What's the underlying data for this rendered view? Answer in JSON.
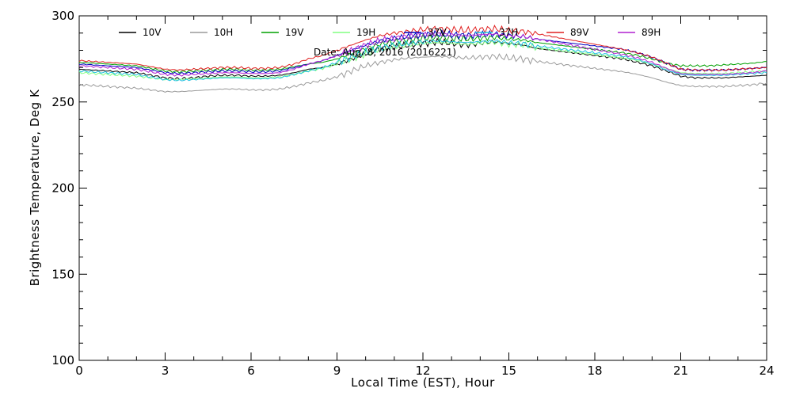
{
  "chart_data": {
    "type": "line",
    "title": "",
    "subtitle": "Date: Aug. 8, 2016 (2016221)",
    "xlabel": "Local Time (EST), Hour",
    "ylabel": "Brightness Temperature, Deg K",
    "xlim": [
      0,
      24
    ],
    "ylim": [
      100,
      300
    ],
    "x_ticks": [
      "0",
      "3",
      "6",
      "9",
      "12",
      "15",
      "18",
      "21",
      "24"
    ],
    "y_ticks": [
      "100",
      "150",
      "200",
      "250",
      "300"
    ],
    "grid": false,
    "legend_position": "top",
    "x": [
      0,
      0.5,
      1,
      1.5,
      2,
      2.5,
      3,
      3.5,
      4,
      4.5,
      5,
      5.5,
      6,
      6.5,
      7,
      7.5,
      8,
      8.5,
      9,
      9.5,
      10,
      10.5,
      11,
      11.5,
      12,
      12.5,
      13,
      13.5,
      14,
      14.5,
      15,
      15.5,
      16,
      16.5,
      17,
      17.5,
      18,
      18.5,
      19,
      19.5,
      20,
      20.5,
      21,
      21.5,
      22,
      22.5,
      23,
      23.5,
      24
    ],
    "series": [
      {
        "name": "10V",
        "color": "#000000",
        "values": [
          269,
          268.5,
          268,
          267.5,
          267,
          265.5,
          264,
          263.5,
          264,
          265,
          265.5,
          265.5,
          265,
          265,
          265.5,
          267,
          269,
          270,
          272,
          275,
          278,
          281,
          282,
          283,
          284,
          285,
          284,
          283,
          284,
          285,
          284,
          283,
          281,
          280,
          279,
          278,
          277,
          276,
          275,
          273,
          271,
          268,
          265,
          264,
          264,
          264,
          264.5,
          265,
          265.5
        ]
      },
      {
        "name": "10H",
        "color": "#9a9a9a",
        "values": [
          260,
          259.5,
          259,
          258.5,
          258,
          257,
          256,
          256,
          256.5,
          257,
          257.5,
          257.5,
          257,
          257,
          257.5,
          259,
          261,
          262.5,
          264.5,
          268,
          271,
          273,
          274.5,
          275.5,
          276,
          276.5,
          276,
          275.5,
          276,
          276.5,
          275.5,
          275,
          273.5,
          272.5,
          271.5,
          270.5,
          269.5,
          268.5,
          267.5,
          266,
          264,
          261.5,
          259.5,
          259,
          259,
          259,
          259.5,
          260,
          261
        ]
      },
      {
        "name": "19V",
        "color": "#00a000",
        "values": [
          273,
          272.5,
          272,
          271.5,
          271,
          269.5,
          268,
          267.5,
          268,
          268.5,
          269,
          269,
          268.5,
          268.5,
          269,
          270.5,
          272,
          273,
          275,
          278,
          281,
          283.5,
          285,
          286,
          287,
          287.5,
          287,
          286.5,
          287,
          287.5,
          286.5,
          286,
          284.5,
          283.5,
          282.5,
          281.5,
          280.5,
          279.5,
          278.5,
          277,
          275,
          272.5,
          271,
          271,
          271,
          271.5,
          272,
          272.5,
          273.5
        ]
      },
      {
        "name": "19H",
        "color": "#80ff80",
        "values": [
          267,
          266.5,
          266,
          265.5,
          265,
          264,
          263,
          263,
          263.5,
          264,
          264.5,
          264.5,
          264,
          264,
          264.5,
          266,
          268,
          269.5,
          272,
          275,
          278,
          280.5,
          282,
          283,
          284,
          284.5,
          284,
          283.5,
          284,
          284.5,
          283.5,
          283,
          281.5,
          280.5,
          279.5,
          278.5,
          277.5,
          276.5,
          275.5,
          274,
          272,
          269.5,
          267,
          266.5,
          266.5,
          266.5,
          267,
          267.5,
          268
        ]
      },
      {
        "name": "37V",
        "color": "#0000c0",
        "values": [
          272,
          271.5,
          271,
          270.5,
          270,
          268.5,
          267,
          266.5,
          267,
          267.5,
          268,
          268,
          267.5,
          267.5,
          268,
          270,
          272,
          274,
          277,
          280,
          283,
          285.5,
          287,
          288,
          289,
          289.5,
          289,
          288.5,
          289,
          289.5,
          288.5,
          288,
          286.5,
          285.5,
          284.5,
          283.5,
          282.5,
          281.5,
          280.5,
          278.5,
          276,
          272.5,
          269,
          268.5,
          268.5,
          268.5,
          269,
          269.5,
          270
        ]
      },
      {
        "name": "37H",
        "color": "#20c0e0",
        "values": [
          268,
          267.5,
          267,
          266.5,
          266,
          264.5,
          263,
          262.5,
          263,
          263.5,
          264,
          264,
          263.5,
          263.5,
          264,
          266,
          268,
          270,
          273,
          276,
          279,
          281.5,
          283,
          284,
          285,
          285.5,
          285,
          284.5,
          285,
          285.5,
          284.5,
          284,
          282.5,
          281.5,
          280.5,
          279.5,
          278.5,
          277.5,
          276.5,
          274.5,
          272,
          268.5,
          266,
          265.5,
          265.5,
          265.5,
          266,
          266.5,
          267
        ]
      },
      {
        "name": "89V",
        "color": "#e02020",
        "values": [
          274,
          273.5,
          273,
          272.5,
          272,
          270.5,
          269,
          268.5,
          269,
          269.5,
          270,
          270,
          269.5,
          269.5,
          270,
          272,
          275,
          277,
          280,
          283,
          286,
          288.5,
          290,
          291,
          292,
          292.5,
          292,
          291.5,
          292,
          292.5,
          291.5,
          291,
          289.5,
          288,
          286.5,
          285,
          283.5,
          282,
          280.5,
          278.5,
          276,
          272.5,
          269,
          268.5,
          268.5,
          268.5,
          269,
          269.5,
          270
        ]
      },
      {
        "name": "89H",
        "color": "#b020d0",
        "values": [
          271,
          270.5,
          270,
          269.5,
          269,
          267.5,
          266,
          265.5,
          266,
          266.5,
          267,
          267,
          266.5,
          266.5,
          267,
          269,
          272,
          274,
          277,
          280,
          283,
          285.5,
          287,
          288,
          289,
          289.5,
          289,
          288.5,
          289,
          289.5,
          288.5,
          288,
          286.5,
          285,
          283.5,
          282,
          280.5,
          279,
          277.5,
          275.5,
          273,
          269.5,
          266.5,
          266,
          266,
          266,
          266.5,
          267,
          268
        ]
      }
    ]
  }
}
